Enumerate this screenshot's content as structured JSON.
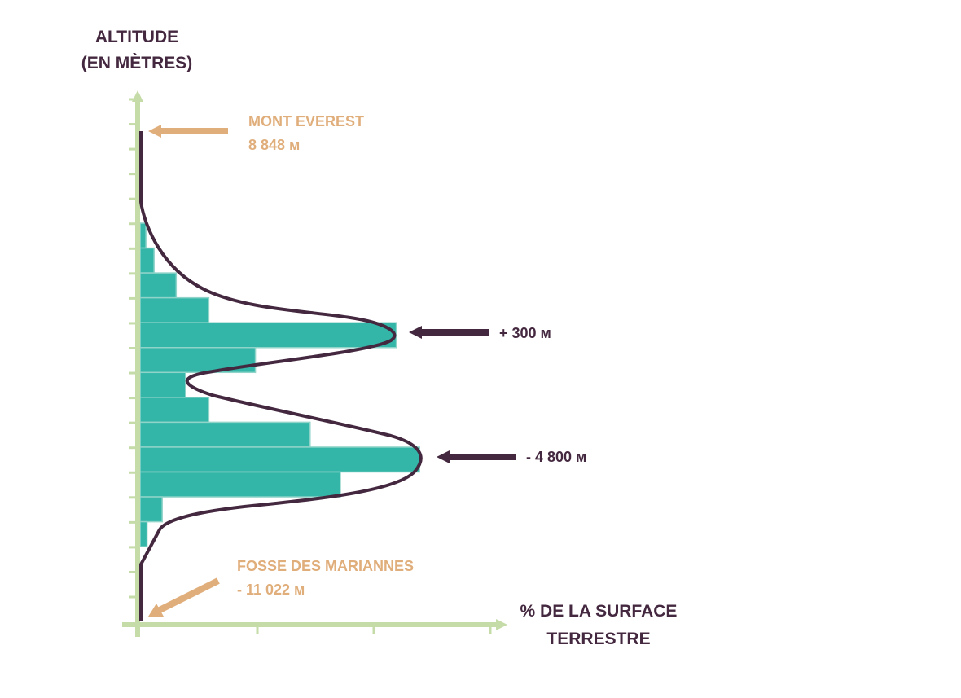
{
  "chart_data": {
    "type": "bar",
    "orientation": "horizontal",
    "title": "",
    "ylabel": [
      "ALTITUDE",
      "(EN MÈTRES)"
    ],
    "xlabel": [
      "% DE LA SURFACE",
      "TERRESTRE"
    ],
    "x_ticks_count": 3,
    "y_ticks_count": 21,
    "xlim": [
      0,
      3.1
    ],
    "grid": false,
    "bins_top_to_bottom": [
      {
        "index": 1,
        "value": 0.05
      },
      {
        "index": 2,
        "value": 0.12
      },
      {
        "index": 3,
        "value": 0.31
      },
      {
        "index": 4,
        "value": 0.59
      },
      {
        "index": 5,
        "value": 2.2
      },
      {
        "index": 6,
        "value": 0.99
      },
      {
        "index": 7,
        "value": 0.39
      },
      {
        "index": 8,
        "value": 0.59
      },
      {
        "index": 9,
        "value": 1.46
      },
      {
        "index": 10,
        "value": 2.4
      },
      {
        "index": 11,
        "value": 1.72
      },
      {
        "index": 12,
        "value": 0.19
      },
      {
        "index": 13,
        "value": 0.06
      }
    ],
    "curve_description": "bimodal hypsometric curve",
    "annotations": [
      {
        "id": "everest",
        "lines": [
          "MONT EVEREST",
          "8 848 м"
        ],
        "color": "#e0ae7b"
      },
      {
        "id": "peak-land",
        "lines": [
          "+ 300 м"
        ],
        "color": "#44283f"
      },
      {
        "id": "peak-ocean",
        "lines": [
          "- 4 800 м"
        ],
        "color": "#44283f"
      },
      {
        "id": "mariana",
        "lines": [
          "FOSSE DES MARIANNES",
          "- 11 022 м"
        ],
        "color": "#e0ae7b"
      }
    ]
  },
  "colors": {
    "axis": "#c5dca8",
    "bar": "#33b6a8",
    "bar_edge": "#8fd3c9",
    "curve": "#44283f",
    "text_dark": "#44283f",
    "text_orange": "#e0ae7b"
  }
}
